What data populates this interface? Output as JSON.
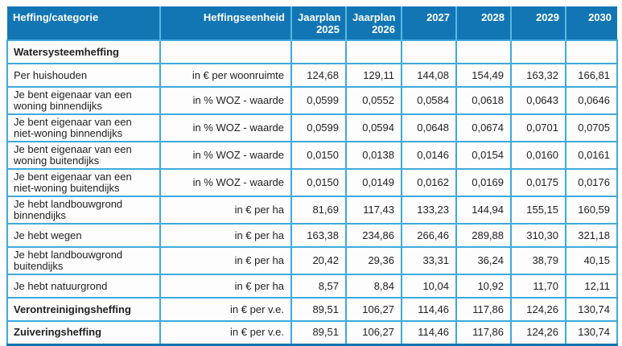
{
  "table": {
    "columns": [
      {
        "label": "Heffing/categorie"
      },
      {
        "label": "Heffingseenheid"
      },
      {
        "label": "Jaarplan 2025"
      },
      {
        "label": "Jaarplan 2026"
      },
      {
        "label": "2027"
      },
      {
        "label": "2028"
      },
      {
        "label": "2029"
      },
      {
        "label": "2030"
      }
    ],
    "rows": [
      {
        "category": "Watersysteemheffing",
        "unit": "",
        "bold": true,
        "values": [
          "",
          "",
          "",
          "",
          "",
          ""
        ]
      },
      {
        "category": "Per huishouden",
        "unit": "in € per woonruimte",
        "bold": false,
        "values": [
          "124,68",
          "129,11",
          "144,08",
          "154,49",
          "163,32",
          "166,81"
        ]
      },
      {
        "category": "Je bent eigenaar van een woning binnendijks",
        "unit": "in % WOZ - waarde",
        "bold": false,
        "values": [
          "0,0599",
          "0,0552",
          "0,0584",
          "0,0618",
          "0,0643",
          "0,0646"
        ]
      },
      {
        "category": "Je bent eigenaar van een niet-woning binnendijks",
        "unit": "in % WOZ - waarde",
        "bold": false,
        "values": [
          "0,0599",
          "0,0594",
          "0,0648",
          "0,0674",
          "0,0701",
          "0,0705"
        ]
      },
      {
        "category": "Je bent eigenaar van een woning buitendijks",
        "unit": "in % WOZ - waarde",
        "bold": false,
        "values": [
          "0,0150",
          "0,0138",
          "0,0146",
          "0,0154",
          "0,0160",
          "0,0161"
        ]
      },
      {
        "category": "Je bent eigenaar van een niet-woning buitendijks",
        "unit": "in % WOZ - waarde",
        "bold": false,
        "values": [
          "0,0150",
          "0,0149",
          "0,0162",
          "0,0169",
          "0,0175",
          "0,0176"
        ]
      },
      {
        "category": "Je hebt landbouwgrond binnendijks",
        "unit": "in € per ha",
        "bold": false,
        "values": [
          "81,69",
          "117,43",
          "133,23",
          "144,94",
          "155,15",
          "160,59"
        ]
      },
      {
        "category": "Je hebt wegen",
        "unit": "in € per ha",
        "bold": false,
        "values": [
          "163,38",
          "234,86",
          "266,46",
          "289,88",
          "310,30",
          "321,18"
        ]
      },
      {
        "category": "Je hebt landbouwgrond buitendijks",
        "unit": "in € per ha",
        "bold": false,
        "values": [
          "20,42",
          "29,36",
          "33,31",
          "36,24",
          "38,79",
          "40,15"
        ]
      },
      {
        "category": "Je hebt natuurgrond",
        "unit": "in € per ha",
        "bold": false,
        "values": [
          "8,57",
          "8,84",
          "10,04",
          "10,92",
          "11,70",
          "12,11"
        ]
      },
      {
        "category": "Verontreinigingsheffing",
        "unit": "in € per v.e.",
        "bold": true,
        "values": [
          "89,51",
          "106,27",
          "114,46",
          "117,86",
          "124,26",
          "130,74"
        ]
      },
      {
        "category": "Zuiveringsheffing",
        "unit": "in € per v.e.",
        "bold": true,
        "values": [
          "89,51",
          "106,27",
          "114,46",
          "117,86",
          "124,26",
          "130,74"
        ]
      }
    ],
    "colors": {
      "header_bg": "#1276b5",
      "header_text": "#ffffff",
      "grid_border": "#3fa9dc",
      "bottom_border": "#1276b5",
      "body_text": "#1f1f1f"
    }
  }
}
